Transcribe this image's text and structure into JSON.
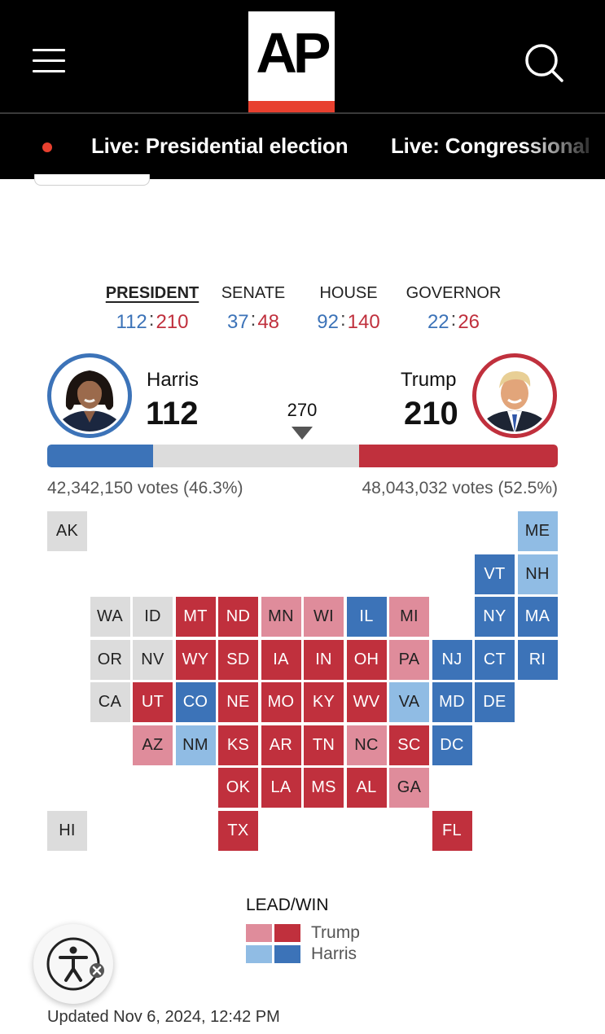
{
  "header": {
    "logo_text": "AP",
    "menu_icon": "hamburger-menu-icon",
    "search_icon": "search-icon"
  },
  "live_links": [
    {
      "label": "Live: Presidential election"
    },
    {
      "label": "Live: Congressional"
    }
  ],
  "races": [
    {
      "name": "PRESIDENT",
      "dem": "112",
      "rep": "210",
      "active": true
    },
    {
      "name": "SENATE",
      "dem": "37",
      "rep": "48",
      "active": false
    },
    {
      "name": "HOUSE",
      "dem": "92",
      "rep": "140",
      "active": false
    },
    {
      "name": "GOVERNOR",
      "dem": "22",
      "rep": "26",
      "active": false
    }
  ],
  "score_separator": ":",
  "candidates": {
    "harris": {
      "name": "Harris",
      "electoral_votes": "112",
      "votes_text": "42,342,150 votes (46.3%)",
      "bar_fraction": 0.2074
    },
    "trump": {
      "name": "Trump",
      "electoral_votes": "210",
      "votes_text": "48,043,032 votes (52.5%)",
      "bar_fraction": 0.3889
    }
  },
  "threshold": "270",
  "colors": {
    "trump_win": "#c0303d",
    "trump_lead": "#df8c9b",
    "harris_win": "#3c73b8",
    "harris_lead": "#90bce4",
    "pending": "#dcdcdc"
  },
  "map_states": [
    {
      "abbr": "AK",
      "status": "pending"
    },
    {
      "abbr": "ME",
      "status": "harris_lead"
    },
    {
      "abbr": "VT",
      "status": "harris_win"
    },
    {
      "abbr": "NH",
      "status": "harris_lead"
    },
    {
      "abbr": "WA",
      "status": "pending"
    },
    {
      "abbr": "ID",
      "status": "pending"
    },
    {
      "abbr": "MT",
      "status": "trump_win"
    },
    {
      "abbr": "ND",
      "status": "trump_win"
    },
    {
      "abbr": "MN",
      "status": "trump_lead"
    },
    {
      "abbr": "WI",
      "status": "trump_lead"
    },
    {
      "abbr": "IL",
      "status": "harris_win"
    },
    {
      "abbr": "MI",
      "status": "trump_lead"
    },
    {
      "abbr": "NY",
      "status": "harris_win"
    },
    {
      "abbr": "MA",
      "status": "harris_win"
    },
    {
      "abbr": "OR",
      "status": "pending"
    },
    {
      "abbr": "NV",
      "status": "pending"
    },
    {
      "abbr": "WY",
      "status": "trump_win"
    },
    {
      "abbr": "SD",
      "status": "trump_win"
    },
    {
      "abbr": "IA",
      "status": "trump_win"
    },
    {
      "abbr": "IN",
      "status": "trump_win"
    },
    {
      "abbr": "OH",
      "status": "trump_win"
    },
    {
      "abbr": "PA",
      "status": "trump_lead"
    },
    {
      "abbr": "NJ",
      "status": "harris_win"
    },
    {
      "abbr": "CT",
      "status": "harris_win"
    },
    {
      "abbr": "RI",
      "status": "harris_win"
    },
    {
      "abbr": "CA",
      "status": "pending"
    },
    {
      "abbr": "UT",
      "status": "trump_win"
    },
    {
      "abbr": "CO",
      "status": "harris_win"
    },
    {
      "abbr": "NE",
      "status": "trump_win"
    },
    {
      "abbr": "MO",
      "status": "trump_win"
    },
    {
      "abbr": "KY",
      "status": "trump_win"
    },
    {
      "abbr": "WV",
      "status": "trump_win"
    },
    {
      "abbr": "VA",
      "status": "harris_lead"
    },
    {
      "abbr": "MD",
      "status": "harris_win"
    },
    {
      "abbr": "DE",
      "status": "harris_win"
    },
    {
      "abbr": "AZ",
      "status": "trump_lead"
    },
    {
      "abbr": "NM",
      "status": "harris_lead"
    },
    {
      "abbr": "KS",
      "status": "trump_win"
    },
    {
      "abbr": "AR",
      "status": "trump_win"
    },
    {
      "abbr": "TN",
      "status": "trump_win"
    },
    {
      "abbr": "NC",
      "status": "trump_lead"
    },
    {
      "abbr": "SC",
      "status": "trump_win"
    },
    {
      "abbr": "DC",
      "status": "harris_win"
    },
    {
      "abbr": "OK",
      "status": "trump_win"
    },
    {
      "abbr": "LA",
      "status": "trump_win"
    },
    {
      "abbr": "MS",
      "status": "trump_win"
    },
    {
      "abbr": "AL",
      "status": "trump_win"
    },
    {
      "abbr": "GA",
      "status": "trump_lead"
    },
    {
      "abbr": "HI",
      "status": "pending"
    },
    {
      "abbr": "TX",
      "status": "trump_win"
    },
    {
      "abbr": "FL",
      "status": "trump_win"
    }
  ],
  "legend": {
    "title": "LEAD/WIN",
    "trump_label": "Trump",
    "harris_label": "Harris"
  },
  "accessibility_icon": "accessibility-icon",
  "updated_text": "Updated Nov 6, 2024, 12:42 PM"
}
